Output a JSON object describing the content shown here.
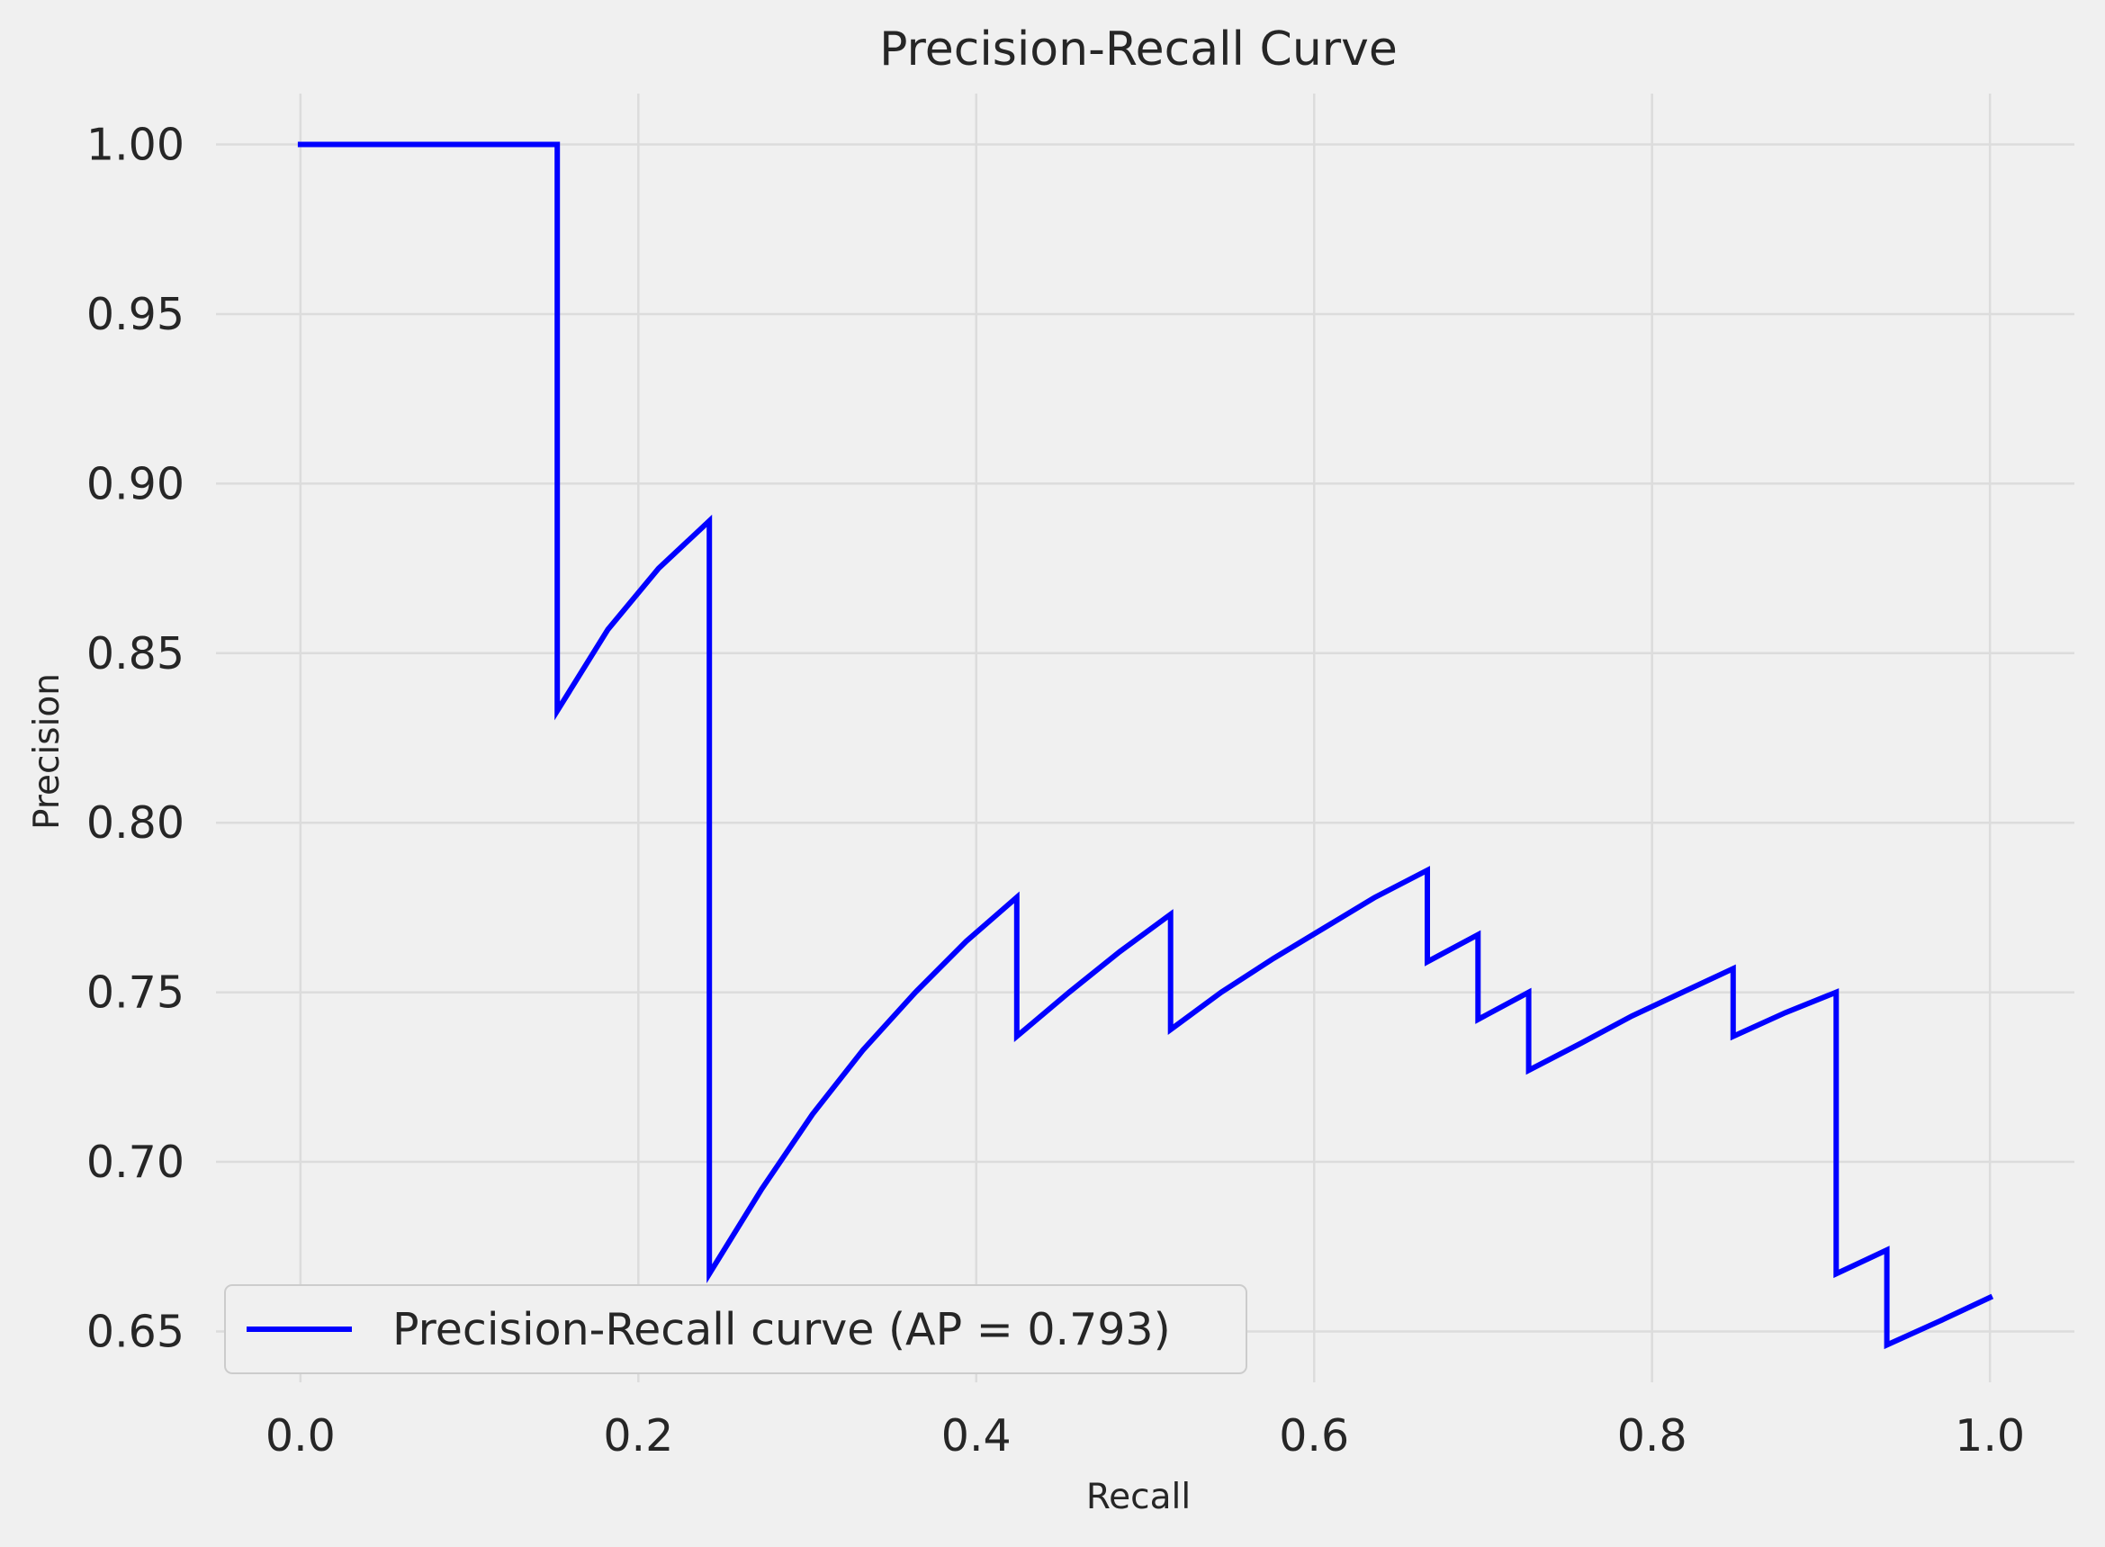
{
  "chart_data": {
    "type": "line",
    "title": "Precision-Recall Curve",
    "xlabel": "Recall",
    "ylabel": "Precision",
    "xlim": [
      -0.05,
      1.05
    ],
    "ylim": [
      0.635,
      1.015
    ],
    "grid": true,
    "legend_position": "lower-left",
    "x_ticks": [
      "0.0",
      "0.2",
      "0.4",
      "0.6",
      "0.8",
      "1.0"
    ],
    "y_ticks": [
      "0.65",
      "0.70",
      "0.75",
      "0.80",
      "0.85",
      "0.90",
      "0.95",
      "1.00"
    ],
    "series": [
      {
        "name": "Precision-Recall curve (AP = 0.793)",
        "color": "#0000ff",
        "x": [
          0.0,
          0.152,
          0.152,
          0.182,
          0.212,
          0.242,
          0.242,
          0.273,
          0.303,
          0.333,
          0.364,
          0.394,
          0.424,
          0.424,
          0.455,
          0.485,
          0.515,
          0.515,
          0.545,
          0.576,
          0.606,
          0.636,
          0.667,
          0.667,
          0.697,
          0.697,
          0.727,
          0.727,
          0.758,
          0.788,
          0.818,
          0.848,
          0.848,
          0.879,
          0.909,
          0.909,
          0.939,
          0.939,
          0.97,
          1.0
        ],
        "y": [
          1.0,
          1.0,
          0.833,
          0.857,
          0.875,
          0.889,
          0.667,
          0.692,
          0.714,
          0.733,
          0.75,
          0.765,
          0.778,
          0.737,
          0.75,
          0.762,
          0.773,
          0.739,
          0.75,
          0.76,
          0.769,
          0.778,
          0.786,
          0.759,
          0.767,
          0.742,
          0.75,
          0.727,
          0.735,
          0.743,
          0.75,
          0.757,
          0.737,
          0.744,
          0.75,
          0.667,
          0.674,
          0.646,
          0.653,
          0.66
        ]
      }
    ]
  }
}
